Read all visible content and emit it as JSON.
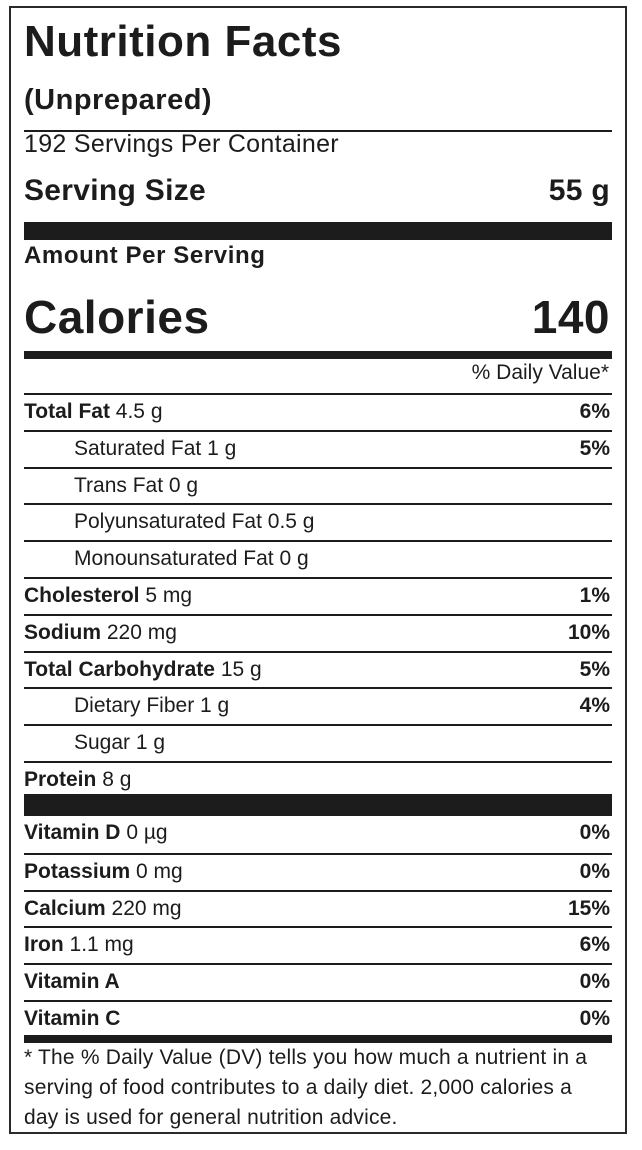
{
  "title": "Nutrition Facts",
  "subtitle": "(Unprepared)",
  "servings_per_container": "192 Servings Per Container",
  "serving_size": {
    "label": "Serving Size",
    "value": "55 g"
  },
  "amount_per_serving": "Amount Per Serving",
  "calories": {
    "label": "Calories",
    "value": "140"
  },
  "daily_value_header": "% Daily Value*",
  "nutrients": [
    {
      "name": "Total Fat",
      "amount": "4.5 g",
      "pct": "6%"
    },
    {
      "name": "Saturated Fat 1 g",
      "amount": "",
      "pct": "5%"
    },
    {
      "name": "Trans Fat 0 g",
      "amount": "",
      "pct": ""
    },
    {
      "name": "Polyunsaturated Fat 0.5 g",
      "amount": "",
      "pct": ""
    },
    {
      "name": "Monounsaturated Fat 0 g",
      "amount": "",
      "pct": ""
    },
    {
      "name": "Cholesterol",
      "amount": "5 mg",
      "pct": "1%"
    },
    {
      "name": "Sodium",
      "amount": "220 mg",
      "pct": "10%"
    },
    {
      "name": "Total Carbohydrate",
      "amount": "15 g",
      "pct": "5%"
    },
    {
      "name": "Dietary Fiber 1 g",
      "amount": "",
      "pct": "4%"
    },
    {
      "name": "Sugar 1 g",
      "amount": "",
      "pct": ""
    },
    {
      "name": "Protein",
      "amount": "8 g",
      "pct": ""
    }
  ],
  "vitamins": [
    {
      "name": "Vitamin D",
      "amount": "0 µg",
      "pct": "0%"
    },
    {
      "name": "Potassium",
      "amount": "0 mg",
      "pct": "0%"
    },
    {
      "name": "Calcium",
      "amount": "220 mg",
      "pct": "15%"
    },
    {
      "name": "Iron",
      "amount": "1.1 mg",
      "pct": "6%"
    },
    {
      "name": "Vitamin A",
      "amount": "",
      "pct": "0%"
    },
    {
      "name": "Vitamin C",
      "amount": "",
      "pct": "0%"
    }
  ],
  "footnote": "* The % Daily Value (DV) tells you how much a nutrient in a serving of food contributes to a daily diet. 2,000 calories a day is used for general nutrition advice."
}
